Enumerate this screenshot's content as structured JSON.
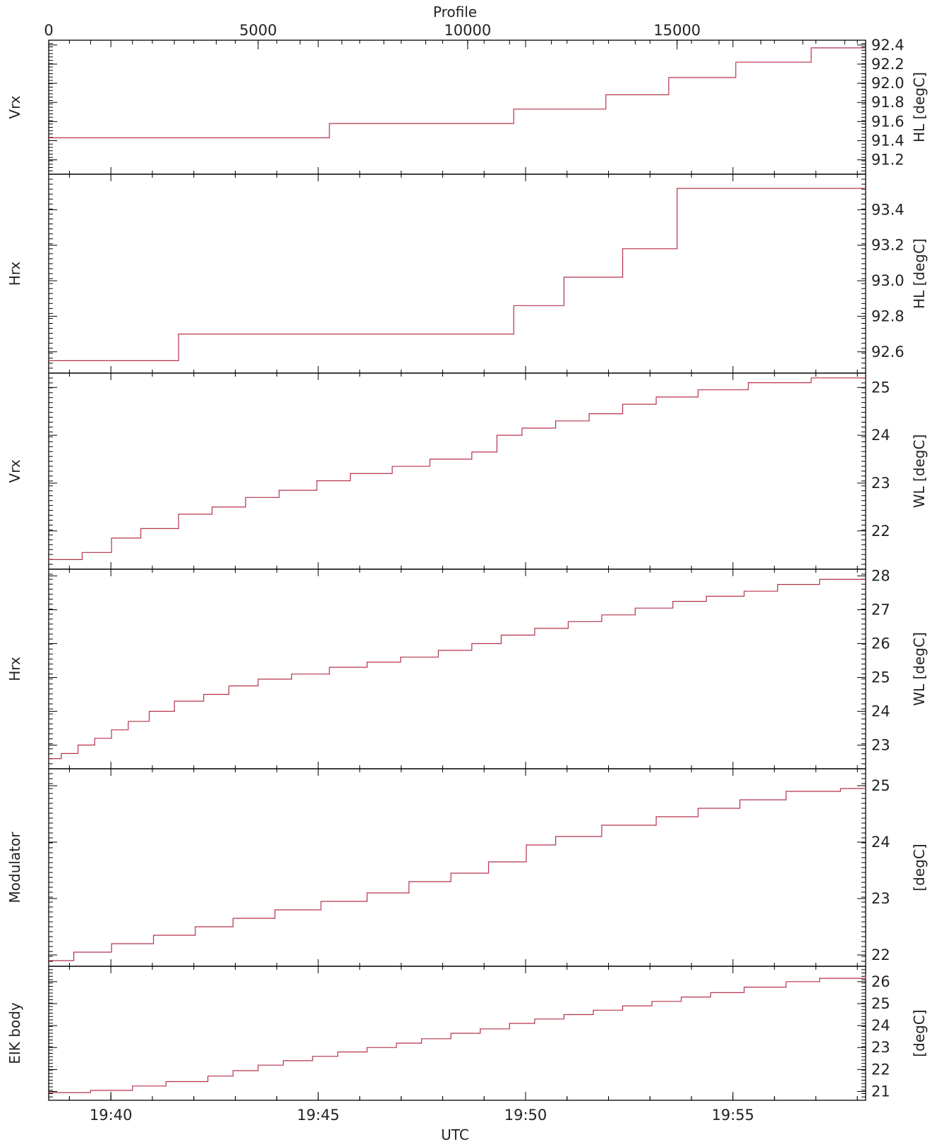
{
  "colors": {
    "series": "#b5324b",
    "axis": "#000000",
    "text": "#222222"
  },
  "chart_data": {
    "type": "line",
    "top_axis": {
      "label": "Profile",
      "range": [
        0,
        19500
      ],
      "ticks": [
        0,
        5000,
        10000,
        15000
      ]
    },
    "bottom_axis": {
      "label": "UTC",
      "range_minutes": [
        1178.5,
        1198.2
      ],
      "ticks": [
        1180,
        1185,
        1190,
        1195
      ],
      "tick_labels": [
        "19:40",
        "19:45",
        "19:50",
        "19:55"
      ]
    },
    "panels": [
      {
        "left_label": "Vrx",
        "right_label": "HL [degC]",
        "ylim": [
          91.05,
          92.45
        ],
        "ticks": [
          91.2,
          91.4,
          91.6,
          91.8,
          92.0,
          92.2,
          92.4
        ],
        "tick_labels": [
          "91.2",
          "91.4",
          "91.6",
          "91.8",
          "92.0",
          "92.2",
          "92.4"
        ],
        "steps": [
          [
            0,
            91.43
          ],
          [
            6700,
            91.58
          ],
          [
            11100,
            91.73
          ],
          [
            13300,
            91.88
          ],
          [
            14800,
            92.06
          ],
          [
            16400,
            92.22
          ],
          [
            18200,
            92.37
          ],
          [
            19500,
            92.37
          ]
        ]
      },
      {
        "left_label": "Hrx",
        "right_label": "HL [degC]",
        "ylim": [
          92.48,
          93.6
        ],
        "ticks": [
          92.6,
          92.8,
          93.0,
          93.2,
          93.4
        ],
        "tick_labels": [
          "92.6",
          "92.8",
          "93.0",
          "93.2",
          "93.4"
        ],
        "steps": [
          [
            0,
            92.55
          ],
          [
            3100,
            92.7
          ],
          [
            11100,
            92.86
          ],
          [
            12300,
            93.02
          ],
          [
            13700,
            93.18
          ],
          [
            15000,
            93.52
          ],
          [
            19500,
            93.52
          ]
        ]
      },
      {
        "left_label": "Vrx",
        "right_label": "WL [degC]",
        "ylim": [
          21.2,
          25.3
        ],
        "ticks": [
          22,
          23,
          24,
          25
        ],
        "tick_labels": [
          "22",
          "23",
          "24",
          "25"
        ],
        "steps": [
          [
            0,
            21.4
          ],
          [
            800,
            21.55
          ],
          [
            1500,
            21.85
          ],
          [
            2200,
            22.05
          ],
          [
            3100,
            22.35
          ],
          [
            3900,
            22.5
          ],
          [
            4700,
            22.7
          ],
          [
            5500,
            22.85
          ],
          [
            6400,
            23.05
          ],
          [
            7200,
            23.2
          ],
          [
            8200,
            23.35
          ],
          [
            9100,
            23.5
          ],
          [
            10100,
            23.65
          ],
          [
            10700,
            24.0
          ],
          [
            11300,
            24.15
          ],
          [
            12100,
            24.3
          ],
          [
            12900,
            24.45
          ],
          [
            13700,
            24.65
          ],
          [
            14500,
            24.8
          ],
          [
            15500,
            24.95
          ],
          [
            16700,
            25.1
          ],
          [
            18200,
            25.2
          ],
          [
            19500,
            25.2
          ]
        ]
      },
      {
        "left_label": "Hrx",
        "right_label": "WL [degC]",
        "ylim": [
          22.3,
          28.2
        ],
        "ticks": [
          23,
          24,
          25,
          26,
          27,
          28
        ],
        "tick_labels": [
          "23",
          "24",
          "25",
          "26",
          "27",
          "28"
        ],
        "steps": [
          [
            0,
            22.6
          ],
          [
            300,
            22.75
          ],
          [
            700,
            23.0
          ],
          [
            1100,
            23.2
          ],
          [
            1500,
            23.45
          ],
          [
            1900,
            23.7
          ],
          [
            2400,
            24.0
          ],
          [
            3000,
            24.3
          ],
          [
            3700,
            24.5
          ],
          [
            4300,
            24.75
          ],
          [
            5000,
            24.95
          ],
          [
            5800,
            25.1
          ],
          [
            6700,
            25.3
          ],
          [
            7600,
            25.45
          ],
          [
            8400,
            25.6
          ],
          [
            9300,
            25.8
          ],
          [
            10100,
            26.0
          ],
          [
            10800,
            26.25
          ],
          [
            11600,
            26.45
          ],
          [
            12400,
            26.65
          ],
          [
            13200,
            26.85
          ],
          [
            14000,
            27.05
          ],
          [
            14900,
            27.25
          ],
          [
            15700,
            27.4
          ],
          [
            16600,
            27.55
          ],
          [
            17400,
            27.75
          ],
          [
            18400,
            27.9
          ],
          [
            19500,
            27.9
          ]
        ]
      },
      {
        "left_label": "Modulator",
        "right_label": "[degC]",
        "ylim": [
          21.8,
          25.3
        ],
        "ticks": [
          22,
          23,
          24,
          25
        ],
        "tick_labels": [
          "22",
          "23",
          "24",
          "25"
        ],
        "steps": [
          [
            0,
            21.9
          ],
          [
            600,
            22.05
          ],
          [
            1500,
            22.2
          ],
          [
            2500,
            22.35
          ],
          [
            3500,
            22.5
          ],
          [
            4400,
            22.65
          ],
          [
            5400,
            22.8
          ],
          [
            6500,
            22.95
          ],
          [
            7600,
            23.1
          ],
          [
            8600,
            23.3
          ],
          [
            9600,
            23.45
          ],
          [
            10500,
            23.65
          ],
          [
            11400,
            23.95
          ],
          [
            12100,
            24.1
          ],
          [
            13200,
            24.3
          ],
          [
            14500,
            24.45
          ],
          [
            15500,
            24.6
          ],
          [
            16500,
            24.75
          ],
          [
            17600,
            24.9
          ],
          [
            18900,
            24.95
          ],
          [
            19500,
            24.95
          ]
        ]
      },
      {
        "left_label": "EIK body",
        "right_label": "[degC]",
        "ylim": [
          20.6,
          26.7
        ],
        "ticks": [
          21,
          22,
          23,
          24,
          25,
          26
        ],
        "tick_labels": [
          "21",
          "22",
          "23",
          "24",
          "25",
          "26"
        ],
        "steps": [
          [
            0,
            20.95
          ],
          [
            1000,
            21.05
          ],
          [
            2000,
            21.25
          ],
          [
            2800,
            21.45
          ],
          [
            3800,
            21.7
          ],
          [
            4400,
            21.95
          ],
          [
            5000,
            22.2
          ],
          [
            5600,
            22.4
          ],
          [
            6300,
            22.6
          ],
          [
            6900,
            22.8
          ],
          [
            7600,
            23.0
          ],
          [
            8300,
            23.2
          ],
          [
            8900,
            23.4
          ],
          [
            9600,
            23.65
          ],
          [
            10300,
            23.85
          ],
          [
            11000,
            24.1
          ],
          [
            11600,
            24.3
          ],
          [
            12300,
            24.5
          ],
          [
            13000,
            24.7
          ],
          [
            13700,
            24.9
          ],
          [
            14400,
            25.1
          ],
          [
            15100,
            25.3
          ],
          [
            15800,
            25.5
          ],
          [
            16600,
            25.75
          ],
          [
            17600,
            26.0
          ],
          [
            18400,
            26.15
          ],
          [
            19500,
            26.25
          ]
        ]
      }
    ]
  }
}
